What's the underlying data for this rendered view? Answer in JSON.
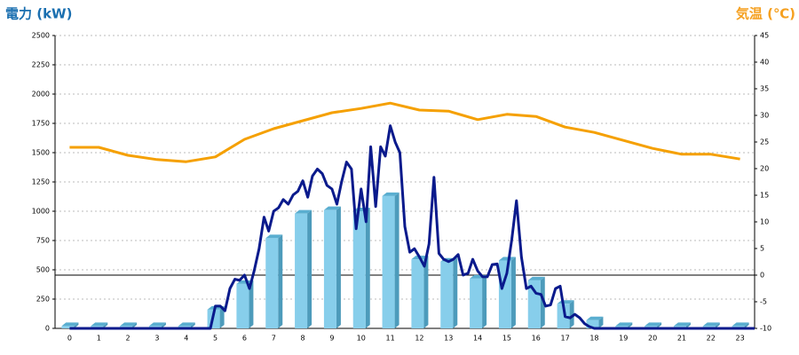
{
  "chart_data": {
    "type": "combo",
    "ytitle": "電力 (kW)",
    "y2title": "気温 (℃)",
    "ytitle_color": "#1a6fb0",
    "y2title_color": "#f5a020",
    "categories": [
      "0",
      "1",
      "2",
      "3",
      "4",
      "5",
      "6",
      "7",
      "8",
      "9",
      "10",
      "11",
      "12",
      "13",
      "14",
      "15",
      "16",
      "17",
      "18",
      "19",
      "20",
      "21",
      "22",
      "23"
    ],
    "xlim": [
      -0.5,
      23.5
    ],
    "ylim": [
      0,
      2500
    ],
    "yticks": [
      0,
      250,
      500,
      750,
      1000,
      1250,
      1500,
      1750,
      2000,
      2250,
      2500
    ],
    "y2lim": [
      -10,
      45
    ],
    "y2ticks": [
      -10,
      -5,
      0,
      5,
      10,
      15,
      20,
      25,
      30,
      35,
      40,
      45
    ],
    "grid": true,
    "y2_refline": 0,
    "series": [
      {
        "type": "bar",
        "color": "#87ceeb",
        "values": [
          20,
          20,
          20,
          20,
          20,
          160,
          380,
          770,
          980,
          1010,
          1000,
          1130,
          590,
          570,
          425,
          580,
          410,
          210,
          70,
          20,
          20,
          20,
          20,
          20
        ]
      },
      {
        "type": "line",
        "color": "#0a1a8c",
        "x": [
          0,
          4.83,
          5.0,
          5.17,
          5.33,
          5.5,
          5.67,
          5.83,
          6.0,
          6.17,
          6.33,
          6.5,
          6.67,
          6.83,
          7.0,
          7.17,
          7.33,
          7.5,
          7.67,
          7.83,
          8.0,
          8.17,
          8.33,
          8.5,
          8.67,
          8.83,
          9.0,
          9.17,
          9.33,
          9.5,
          9.67,
          9.83,
          10.0,
          10.17,
          10.33,
          10.5,
          10.67,
          10.83,
          11.0,
          11.17,
          11.33,
          11.5,
          11.67,
          11.83,
          12.0,
          12.17,
          12.33,
          12.5,
          12.67,
          12.83,
          13.0,
          13.17,
          13.33,
          13.5,
          13.67,
          13.83,
          14.0,
          14.17,
          14.33,
          14.5,
          14.67,
          14.83,
          15.0,
          15.17,
          15.33,
          15.5,
          15.67,
          15.83,
          16.0,
          16.17,
          16.33,
          16.5,
          16.67,
          16.83,
          17.0,
          17.17,
          17.33,
          17.5,
          17.67,
          17.83,
          18.0,
          23.5
        ],
        "values": [
          0,
          0,
          190,
          190,
          150,
          340,
          420,
          410,
          455,
          340,
          490,
          680,
          950,
          830,
          1000,
          1030,
          1100,
          1060,
          1140,
          1170,
          1260,
          1120,
          1300,
          1360,
          1320,
          1220,
          1190,
          1060,
          1250,
          1420,
          1360,
          850,
          1190,
          910,
          1550,
          1040,
          1550,
          1470,
          1730,
          1590,
          1500,
          870,
          650,
          680,
          610,
          530,
          720,
          1290,
          640,
          590,
          570,
          590,
          630,
          455,
          470,
          590,
          490,
          440,
          440,
          545,
          550,
          340,
          470,
          760,
          1090,
          610,
          340,
          360,
          300,
          290,
          190,
          200,
          340,
          360,
          100,
          90,
          120,
          90,
          40,
          15,
          0,
          0
        ]
      },
      {
        "type": "line",
        "axis": "y2",
        "color": "#f5a000",
        "values": [
          24,
          24,
          22.5,
          21.7,
          21.3,
          22.2,
          25.5,
          27.5,
          29,
          30.5,
          31.3,
          32.3,
          31,
          30.8,
          29.2,
          30.2,
          29.8,
          27.8,
          26.8,
          25.3,
          23.8,
          22.7,
          22.7,
          21.8
        ]
      }
    ]
  }
}
